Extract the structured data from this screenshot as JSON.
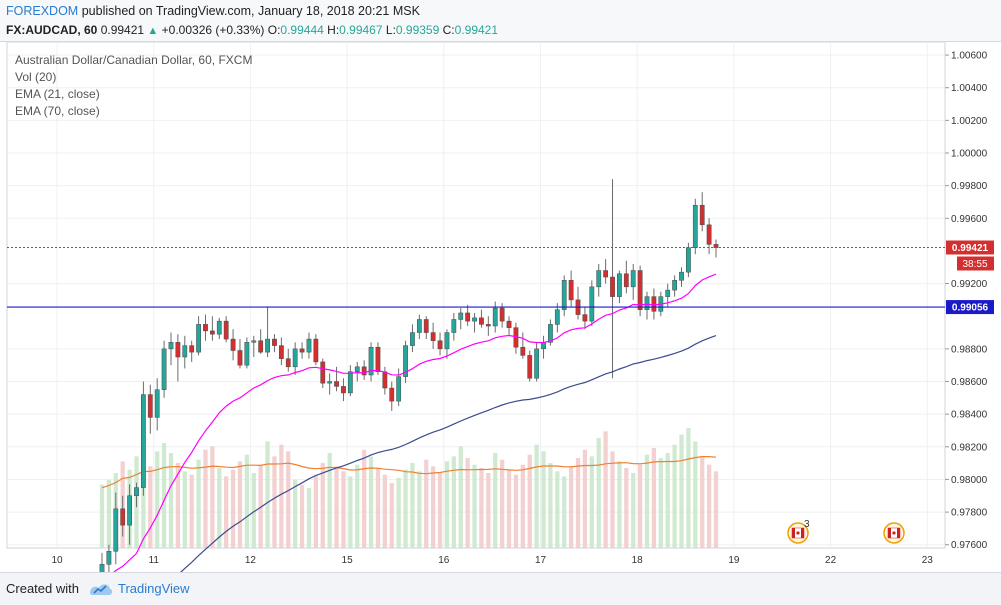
{
  "header": {
    "author": "FOREXDOM",
    "published_text": "published on TradingView.com, January 18, 2018 20:21 MSK",
    "symbol": "FX:AUDCAD, 60",
    "last": "0.99421",
    "change": "+0.00326 (+0.33%)",
    "o_label": "O:",
    "o_value": "0.99444",
    "h_label": "H:",
    "h_value": "0.99467",
    "l_label": "L:",
    "l_value": "0.99359",
    "c_label": "C:",
    "c_value": "0.99421"
  },
  "legend": {
    "title": "Australian Dollar/Canadian Dollar, 60, FXCM",
    "vol": "Vol (20)",
    "ema21": "EMA (21, close)",
    "ema70": "EMA (70, close)"
  },
  "badges": {
    "price": "0.99421",
    "countdown": "38:55",
    "level": "0.99056",
    "event_count": "3"
  },
  "footer": {
    "created_with": "Created with",
    "brand": "TradingView"
  },
  "colors": {
    "up": "#26a69a",
    "down": "#d32f2f",
    "ema21": "#ff00ff",
    "ema70": "#3a4b8f",
    "vol_ma": "#f08030",
    "level": "#1a1ac8",
    "price_line": "#d32f2f"
  },
  "chart_data": {
    "type": "candlestick",
    "y_ticks": [
      "1.00600",
      "1.00400",
      "1.00200",
      "1.00000",
      "0.99800",
      "0.99600",
      "0.99200",
      "0.98800",
      "0.98600",
      "0.98400",
      "0.98200",
      "0.98000",
      "0.97800",
      "0.97600"
    ],
    "x_ticks": [
      "10",
      "11",
      "12",
      "15",
      "16",
      "17",
      "18",
      "19",
      "22",
      "23"
    ],
    "ylim": [
      0.9758,
      1.0068
    ],
    "horizontal_level": 0.99056,
    "last_price": 0.99421,
    "candles": [
      [
        0.9742,
        0.9755,
        0.9731,
        0.9748
      ],
      [
        0.9748,
        0.976,
        0.9738,
        0.9756
      ],
      [
        0.9756,
        0.9792,
        0.9748,
        0.9782
      ],
      [
        0.9782,
        0.979,
        0.9765,
        0.9772
      ],
      [
        0.9772,
        0.9797,
        0.976,
        0.979
      ],
      [
        0.979,
        0.9798,
        0.9783,
        0.9795
      ],
      [
        0.9795,
        0.986,
        0.979,
        0.9852
      ],
      [
        0.9852,
        0.9858,
        0.9828,
        0.9838
      ],
      [
        0.9838,
        0.9862,
        0.983,
        0.9855
      ],
      [
        0.9855,
        0.9885,
        0.985,
        0.988
      ],
      [
        0.988,
        0.989,
        0.987,
        0.9884
      ],
      [
        0.9884,
        0.9889,
        0.986,
        0.9875
      ],
      [
        0.9875,
        0.9888,
        0.9868,
        0.9882
      ],
      [
        0.9882,
        0.9885,
        0.9872,
        0.9878
      ],
      [
        0.9878,
        0.99,
        0.9876,
        0.9895
      ],
      [
        0.9895,
        0.9901,
        0.9885,
        0.9891
      ],
      [
        0.9891,
        0.99,
        0.9885,
        0.9889
      ],
      [
        0.9889,
        0.9899,
        0.9886,
        0.9897
      ],
      [
        0.9897,
        0.99,
        0.9884,
        0.9886
      ],
      [
        0.9886,
        0.9892,
        0.9873,
        0.9879
      ],
      [
        0.9879,
        0.9886,
        0.9868,
        0.987
      ],
      [
        0.987,
        0.9887,
        0.9868,
        0.9884
      ],
      [
        0.9884,
        0.9888,
        0.9875,
        0.9885
      ],
      [
        0.9885,
        0.9892,
        0.9877,
        0.9878
      ],
      [
        0.9878,
        0.9906,
        0.9875,
        0.9886
      ],
      [
        0.9886,
        0.9889,
        0.9878,
        0.9882
      ],
      [
        0.9882,
        0.9887,
        0.987,
        0.9874
      ],
      [
        0.9874,
        0.988,
        0.9866,
        0.9869
      ],
      [
        0.9869,
        0.9884,
        0.9864,
        0.988
      ],
      [
        0.988,
        0.9884,
        0.9874,
        0.9878
      ],
      [
        0.9878,
        0.989,
        0.9874,
        0.9886
      ],
      [
        0.9886,
        0.9889,
        0.987,
        0.9872
      ],
      [
        0.9872,
        0.9874,
        0.9856,
        0.9859
      ],
      [
        0.9859,
        0.9865,
        0.9852,
        0.986
      ],
      [
        0.986,
        0.9869,
        0.9854,
        0.9857
      ],
      [
        0.9857,
        0.9862,
        0.9848,
        0.9853
      ],
      [
        0.9853,
        0.987,
        0.9851,
        0.9866
      ],
      [
        0.9866,
        0.9872,
        0.986,
        0.9869
      ],
      [
        0.9869,
        0.9873,
        0.9861,
        0.9864
      ],
      [
        0.9864,
        0.9884,
        0.986,
        0.9881
      ],
      [
        0.9881,
        0.9884,
        0.9864,
        0.9866
      ],
      [
        0.9866,
        0.9869,
        0.9852,
        0.9856
      ],
      [
        0.9856,
        0.986,
        0.9842,
        0.9848
      ],
      [
        0.9848,
        0.9868,
        0.9845,
        0.9863
      ],
      [
        0.9863,
        0.9885,
        0.9859,
        0.9882
      ],
      [
        0.9882,
        0.9895,
        0.9878,
        0.989
      ],
      [
        0.989,
        0.9901,
        0.9886,
        0.9898
      ],
      [
        0.9898,
        0.99,
        0.9886,
        0.989
      ],
      [
        0.989,
        0.9896,
        0.988,
        0.9885
      ],
      [
        0.9885,
        0.989,
        0.9876,
        0.988
      ],
      [
        0.988,
        0.9892,
        0.9874,
        0.989
      ],
      [
        0.989,
        0.9902,
        0.9885,
        0.9898
      ],
      [
        0.9898,
        0.9905,
        0.9892,
        0.9902
      ],
      [
        0.9902,
        0.9907,
        0.9894,
        0.9897
      ],
      [
        0.9897,
        0.9902,
        0.989,
        0.9899
      ],
      [
        0.9899,
        0.9904,
        0.9893,
        0.9895
      ],
      [
        0.9895,
        0.99,
        0.9888,
        0.9894
      ],
      [
        0.9894,
        0.9909,
        0.989,
        0.9905
      ],
      [
        0.9905,
        0.9908,
        0.9893,
        0.9897
      ],
      [
        0.9897,
        0.99,
        0.9888,
        0.9893
      ],
      [
        0.9893,
        0.9896,
        0.9877,
        0.9881
      ],
      [
        0.9881,
        0.989,
        0.9874,
        0.9876
      ],
      [
        0.9876,
        0.9879,
        0.986,
        0.9862
      ],
      [
        0.9862,
        0.9884,
        0.986,
        0.988
      ],
      [
        0.988,
        0.9888,
        0.9874,
        0.9884
      ],
      [
        0.9884,
        0.9898,
        0.9882,
        0.9895
      ],
      [
        0.9895,
        0.9908,
        0.989,
        0.9904
      ],
      [
        0.9904,
        0.9925,
        0.99,
        0.9922
      ],
      [
        0.9922,
        0.9928,
        0.9906,
        0.991
      ],
      [
        0.991,
        0.9918,
        0.9898,
        0.9901
      ],
      [
        0.9901,
        0.9906,
        0.9892,
        0.9897
      ],
      [
        0.9897,
        0.9922,
        0.9894,
        0.9918
      ],
      [
        0.9918,
        0.9932,
        0.9912,
        0.9928
      ],
      [
        0.9928,
        0.9935,
        0.992,
        0.9924
      ],
      [
        0.9924,
        0.9984,
        0.9862,
        0.9912
      ],
      [
        0.9912,
        0.9928,
        0.9908,
        0.9926
      ],
      [
        0.9926,
        0.9934,
        0.9914,
        0.9918
      ],
      [
        0.9918,
        0.9932,
        0.991,
        0.9928
      ],
      [
        0.9928,
        0.9931,
        0.99,
        0.9904
      ],
      [
        0.9904,
        0.9915,
        0.9898,
        0.9912
      ],
      [
        0.9912,
        0.9917,
        0.9898,
        0.9903
      ],
      [
        0.9903,
        0.9915,
        0.99,
        0.9912
      ],
      [
        0.9912,
        0.992,
        0.9906,
        0.9916
      ],
      [
        0.9916,
        0.9925,
        0.9912,
        0.9922
      ],
      [
        0.9922,
        0.993,
        0.9918,
        0.9927
      ],
      [
        0.9927,
        0.9945,
        0.9924,
        0.9942
      ],
      [
        0.9942,
        0.9972,
        0.9938,
        0.9968
      ],
      [
        0.9968,
        0.9976,
        0.9952,
        0.9956
      ],
      [
        0.9956,
        0.996,
        0.9938,
        0.9944
      ],
      [
        0.9944,
        0.9947,
        0.9936,
        0.9942
      ]
    ],
    "volume": [
      38,
      41,
      45,
      52,
      47,
      55,
      60,
      49,
      58,
      63,
      57,
      51,
      46,
      44,
      53,
      59,
      61,
      48,
      43,
      47,
      52,
      56,
      45,
      50,
      64,
      55,
      62,
      58,
      41,
      38,
      36,
      44,
      51,
      57,
      49,
      46,
      43,
      50,
      59,
      55,
      48,
      44,
      39,
      42,
      47,
      51,
      46,
      53,
      49,
      45,
      52,
      55,
      61,
      54,
      50,
      48,
      45,
      57,
      53,
      47,
      44,
      50,
      56,
      62,
      58,
      51,
      46,
      43,
      49,
      54,
      59,
      55,
      66,
      70,
      58,
      52,
      48,
      45,
      50,
      56,
      60,
      54,
      57,
      62,
      68,
      72,
      64,
      55,
      50,
      46
    ]
  }
}
